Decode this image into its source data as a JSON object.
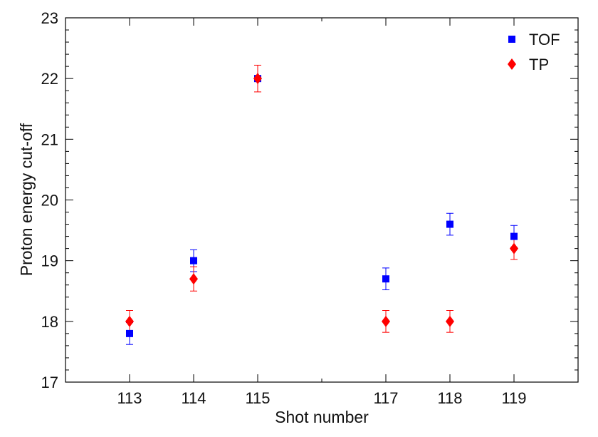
{
  "chart_data": {
    "type": "scatter",
    "xlabel": "Shot number",
    "ylabel": "Proton energy cut-off",
    "xlim": [
      112,
      120
    ],
    "ylim": [
      17,
      23
    ],
    "x_ticks": [
      113,
      114,
      115,
      117,
      118,
      119
    ],
    "y_ticks": [
      17,
      18,
      19,
      20,
      21,
      22,
      23
    ],
    "grid": false,
    "legend_position": "top-right",
    "series": [
      {
        "name": "TOF",
        "marker": "square",
        "color": "#0000ff",
        "points": [
          {
            "x": 113,
            "y": 17.8,
            "err": 0.18
          },
          {
            "x": 114,
            "y": 19.0,
            "err": 0.18
          },
          {
            "x": 115,
            "y": 22.0,
            "err": 0.05
          },
          {
            "x": 117,
            "y": 18.7,
            "err": 0.18
          },
          {
            "x": 118,
            "y": 19.6,
            "err": 0.18
          },
          {
            "x": 119,
            "y": 19.4,
            "err": 0.18
          }
        ]
      },
      {
        "name": "TP",
        "marker": "diamond",
        "color": "#ff0000",
        "points": [
          {
            "x": 113,
            "y": 18.0,
            "err": 0.18
          },
          {
            "x": 114,
            "y": 18.7,
            "err": 0.2
          },
          {
            "x": 115,
            "y": 22.0,
            "err": 0.22
          },
          {
            "x": 117,
            "y": 18.0,
            "err": 0.18
          },
          {
            "x": 118,
            "y": 18.0,
            "err": 0.18
          },
          {
            "x": 119,
            "y": 19.2,
            "err": 0.18
          }
        ]
      }
    ]
  }
}
